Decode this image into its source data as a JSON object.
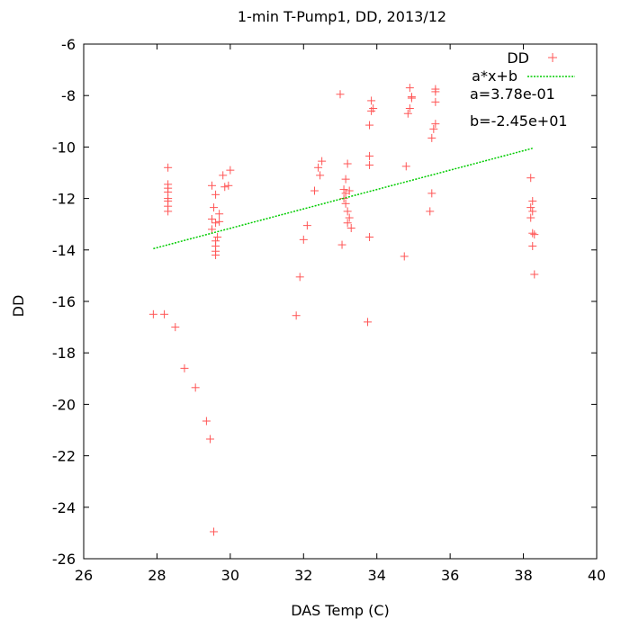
{
  "chart_data": {
    "type": "scatter",
    "title": "1-min T-Pump1, DD, 2013/12",
    "xlabel": "DAS Temp (C)",
    "ylabel": "DD",
    "xlim": [
      26,
      40
    ],
    "ylim": [
      -26,
      -6
    ],
    "xticks": [
      26,
      28,
      30,
      32,
      34,
      36,
      38,
      40
    ],
    "yticks": [
      -26,
      -24,
      -22,
      -20,
      -18,
      -16,
      -14,
      -12,
      -10,
      -8,
      -6
    ],
    "grid": false,
    "legend_position": "top-right",
    "legend": {
      "scatter_label": "DD",
      "fit_label": "a*x+b",
      "a_text": "a=3.78e-01",
      "b_text": "b=-2.45e+01"
    },
    "series": [
      {
        "name": "DD",
        "kind": "scatter",
        "marker": "+",
        "color": "#ff5555",
        "points": [
          [
            27.9,
            -16.5
          ],
          [
            28.2,
            -16.5
          ],
          [
            28.5,
            -17.0
          ],
          [
            28.75,
            -18.6
          ],
          [
            29.05,
            -19.35
          ],
          [
            29.35,
            -20.65
          ],
          [
            29.45,
            -21.35
          ],
          [
            29.55,
            -24.95
          ],
          [
            28.3,
            -10.8
          ],
          [
            28.3,
            -11.45
          ],
          [
            28.3,
            -11.6
          ],
          [
            28.3,
            -11.75
          ],
          [
            28.3,
            -12.0
          ],
          [
            28.3,
            -12.1
          ],
          [
            28.3,
            -12.3
          ],
          [
            28.3,
            -12.5
          ],
          [
            29.5,
            -11.5
          ],
          [
            29.6,
            -11.85
          ],
          [
            29.55,
            -12.35
          ],
          [
            29.7,
            -12.6
          ],
          [
            29.5,
            -12.8
          ],
          [
            29.6,
            -12.95
          ],
          [
            29.5,
            -13.2
          ],
          [
            29.65,
            -13.5
          ],
          [
            29.6,
            -13.65
          ],
          [
            29.6,
            -13.85
          ],
          [
            29.6,
            -14.05
          ],
          [
            29.6,
            -14.2
          ],
          [
            29.7,
            -12.9
          ],
          [
            29.8,
            -11.1
          ],
          [
            29.95,
            -11.5
          ],
          [
            30.0,
            -10.9
          ],
          [
            29.85,
            -11.55
          ],
          [
            31.8,
            -16.55
          ],
          [
            31.9,
            -15.05
          ],
          [
            32.0,
            -13.6
          ],
          [
            32.1,
            -13.05
          ],
          [
            32.3,
            -11.7
          ],
          [
            32.4,
            -10.8
          ],
          [
            32.5,
            -10.55
          ],
          [
            32.45,
            -11.1
          ],
          [
            33.0,
            -7.95
          ],
          [
            33.05,
            -13.8
          ],
          [
            33.1,
            -11.65
          ],
          [
            33.15,
            -11.25
          ],
          [
            33.2,
            -10.65
          ],
          [
            33.15,
            -11.8
          ],
          [
            33.1,
            -12.0
          ],
          [
            33.15,
            -12.2
          ],
          [
            33.2,
            -12.5
          ],
          [
            33.25,
            -12.75
          ],
          [
            33.2,
            -12.95
          ],
          [
            33.3,
            -13.15
          ],
          [
            33.25,
            -11.7
          ],
          [
            33.75,
            -16.8
          ],
          [
            33.8,
            -13.5
          ],
          [
            33.8,
            -10.7
          ],
          [
            33.8,
            -10.35
          ],
          [
            33.8,
            -9.15
          ],
          [
            33.85,
            -8.2
          ],
          [
            33.9,
            -8.5
          ],
          [
            33.85,
            -8.6
          ],
          [
            34.75,
            -14.25
          ],
          [
            34.8,
            -10.75
          ],
          [
            34.85,
            -8.7
          ],
          [
            34.9,
            -8.5
          ],
          [
            34.9,
            -7.7
          ],
          [
            34.95,
            -8.05
          ],
          [
            34.95,
            -8.1
          ],
          [
            35.45,
            -12.5
          ],
          [
            35.5,
            -11.8
          ],
          [
            35.5,
            -9.65
          ],
          [
            35.55,
            -9.3
          ],
          [
            35.6,
            -9.1
          ],
          [
            35.6,
            -8.25
          ],
          [
            35.6,
            -7.85
          ],
          [
            35.6,
            -7.75
          ],
          [
            38.2,
            -11.2
          ],
          [
            38.25,
            -12.1
          ],
          [
            38.2,
            -12.35
          ],
          [
            38.25,
            -12.5
          ],
          [
            38.2,
            -12.75
          ],
          [
            38.25,
            -13.35
          ],
          [
            38.3,
            -13.4
          ],
          [
            38.25,
            -13.85
          ],
          [
            38.3,
            -14.95
          ]
        ]
      },
      {
        "name": "a*x+b",
        "kind": "line",
        "color": "#00cc00",
        "x": [
          27.9,
          38.25
        ],
        "y": [
          -13.95,
          -10.05
        ]
      }
    ]
  }
}
